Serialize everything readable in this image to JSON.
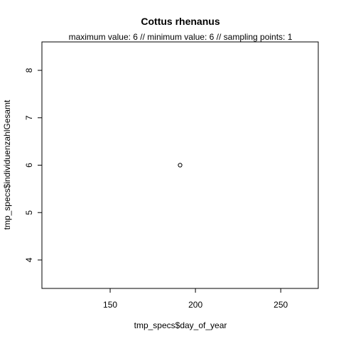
{
  "chart_data": {
    "type": "scatter",
    "title": "Cottus rhenanus",
    "subtitle": "maximum value: 6  //  minimum value: 6  // sampling points: 1",
    "xlabel": "tmp_specs$day_of_year",
    "ylabel": "tmp_specs$individuenzahlGesamt",
    "xlim": [
      110,
      272
    ],
    "ylim": [
      3.4,
      8.6
    ],
    "x_ticks": [
      150,
      200,
      250
    ],
    "y_ticks": [
      4,
      5,
      6,
      7,
      8
    ],
    "points": [
      {
        "x": 191,
        "y": 6
      }
    ],
    "marker": "open-circle",
    "grid": false
  }
}
